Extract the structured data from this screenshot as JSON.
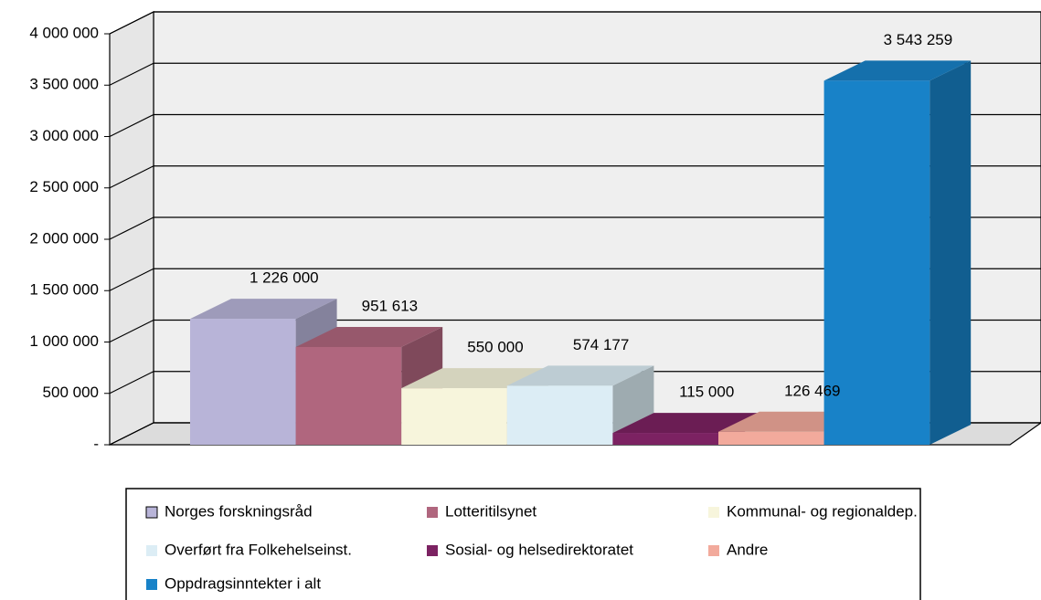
{
  "chart_data": {
    "type": "bar3d",
    "categories": [
      null
    ],
    "series": [
      {
        "name": "Norges forskningsråd",
        "color": "#b8b4d8",
        "values": [
          1226000
        ],
        "value_labels": [
          "1 226 000"
        ]
      },
      {
        "name": "Lotteritilsynet",
        "color": "#b0667e",
        "values": [
          951613
        ],
        "value_labels": [
          "951 613"
        ]
      },
      {
        "name": "Kommunal- og regionaldep.",
        "color": "#f7f5dc",
        "values": [
          550000
        ],
        "value_labels": [
          "550 000"
        ]
      },
      {
        "name": "Overført fra Folkehelseinst.",
        "color": "#dcedf5",
        "values": [
          574177
        ],
        "value_labels": [
          "574 177"
        ]
      },
      {
        "name": "Sosial- og helsedirektoratet",
        "color": "#7c2262",
        "values": [
          115000
        ],
        "value_labels": [
          "115 000"
        ]
      },
      {
        "name": "Andre",
        "color": "#f2aa9c",
        "values": [
          126469
        ],
        "value_labels": [
          "126 469"
        ]
      },
      {
        "name": "Oppdragsinntekter i alt",
        "color": "#1882c8",
        "values": [
          3543259
        ],
        "value_labels": [
          "3 543 259"
        ]
      }
    ],
    "ylim": [
      0,
      4000000
    ],
    "yticks": [
      {
        "value": 0,
        "label": "-"
      },
      {
        "value": 500000,
        "label": "500 000"
      },
      {
        "value": 1000000,
        "label": "1 000 000"
      },
      {
        "value": 1500000,
        "label": "1 500 000"
      },
      {
        "value": 2000000,
        "label": "2 000 000"
      },
      {
        "value": 2500000,
        "label": "2 500 000"
      },
      {
        "value": 3000000,
        "label": "3 000 000"
      },
      {
        "value": 3500000,
        "label": "3 500 000"
      },
      {
        "value": 4000000,
        "label": "4 000 000"
      }
    ],
    "grid": true,
    "legend": "bottom"
  }
}
